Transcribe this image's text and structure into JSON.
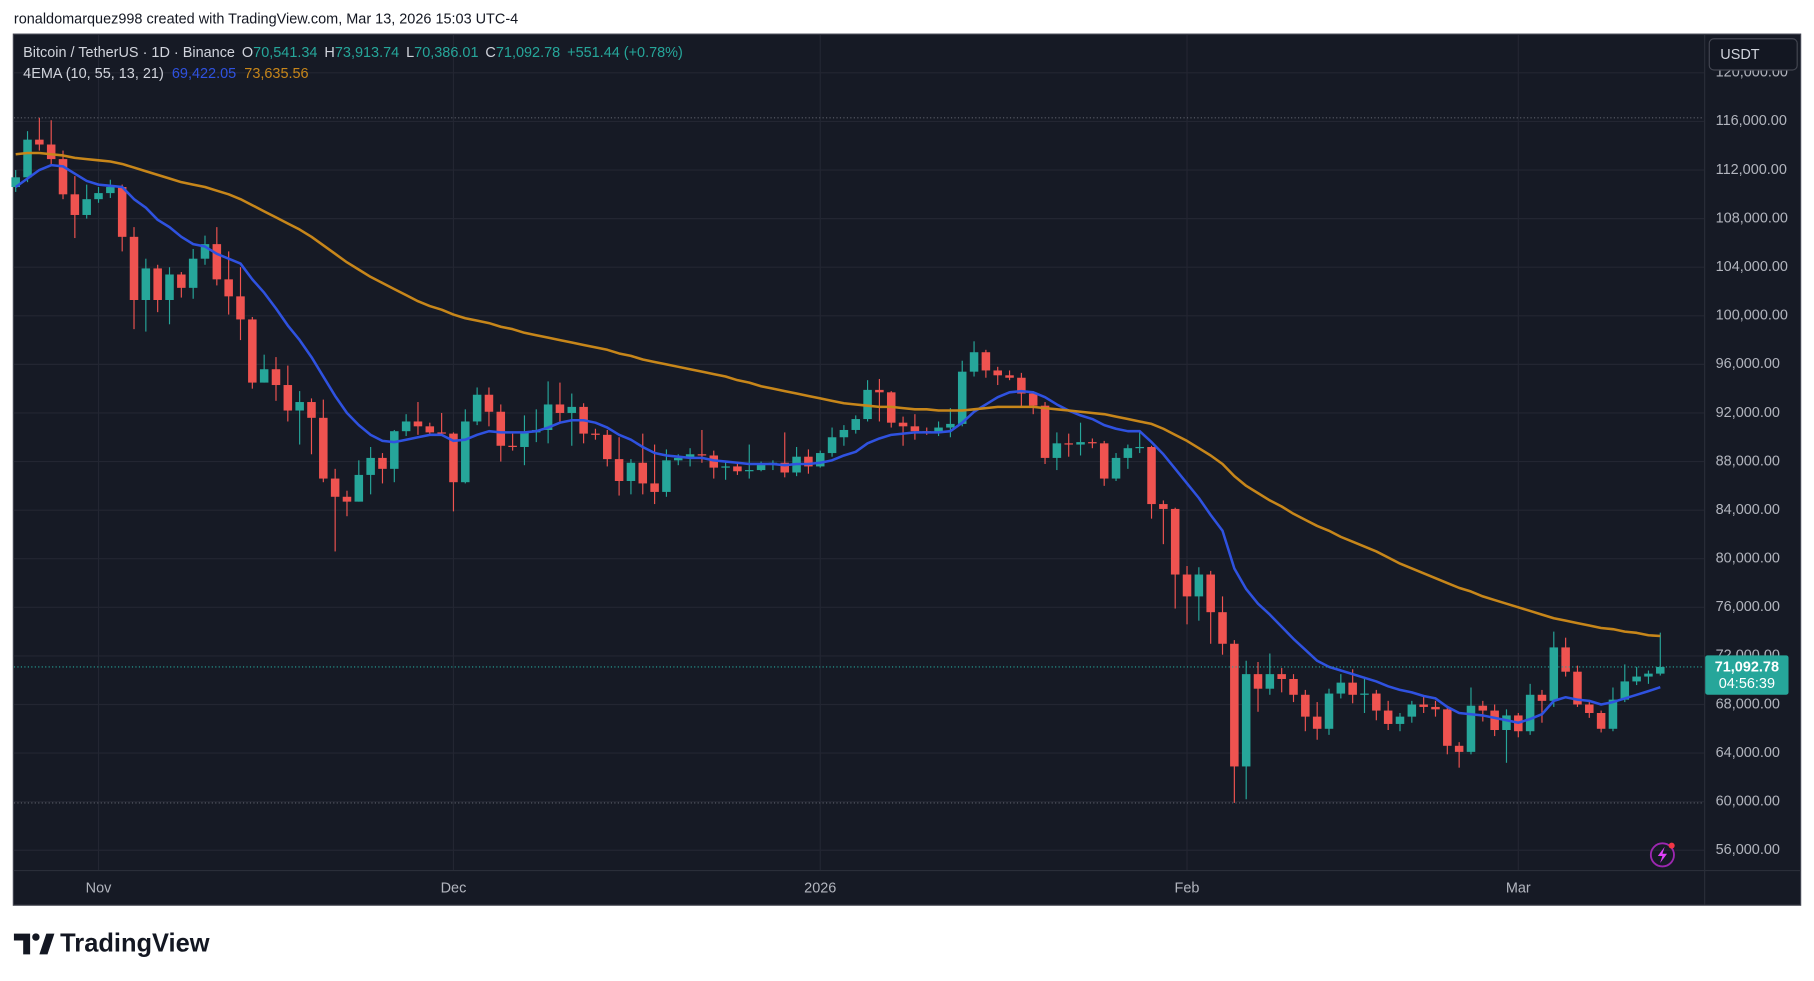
{
  "attribution": "ronaldomarquez998 created with TradingView.com, Mar 13, 2026 15:03 UTC-4",
  "brand": "TradingView",
  "currency_button": "USDT",
  "chart_data": {
    "type": "candlestick",
    "up_color": "#26a69a",
    "down_color": "#ef5350",
    "legend": {
      "symbol": "Bitcoin / TetherUS · 1D · Binance",
      "ohlc": [
        {
          "key": "O",
          "value": "70,541.34"
        },
        {
          "key": "H",
          "value": "73,913.74"
        },
        {
          "key": "L",
          "value": "70,386.01"
        },
        {
          "key": "C",
          "value": "71,092.78"
        }
      ],
      "change": "+551.44 (+0.78%)"
    },
    "last_price_label": "71,092.78",
    "countdown": "04:56:39",
    "xlim": [
      -0.15,
      142.7
    ],
    "xticks": [
      {
        "value": 7,
        "label": "Nov"
      },
      {
        "value": 37,
        "label": "Dec"
      },
      {
        "value": 68,
        "label": "2026"
      },
      {
        "value": 99,
        "label": "Feb"
      },
      {
        "value": 127,
        "label": "Mar"
      }
    ],
    "ylim": [
      54380,
      123140
    ],
    "yticks": [
      {
        "value": 56000,
        "label": "56,000.00"
      },
      {
        "value": 60000,
        "label": "60,000.00"
      },
      {
        "value": 64000,
        "label": "64,000.00"
      },
      {
        "value": 68000,
        "label": "68,000.00"
      },
      {
        "value": 72000,
        "label": "72,000.00"
      },
      {
        "value": 76000,
        "label": "76,000.00"
      },
      {
        "value": 80000,
        "label": "80,000.00"
      },
      {
        "value": 84000,
        "label": "84,000.00"
      },
      {
        "value": 88000,
        "label": "88,000.00"
      },
      {
        "value": 92000,
        "label": "92,000.00"
      },
      {
        "value": 96000,
        "label": "96,000.00"
      },
      {
        "value": 100000,
        "label": "100,000.00"
      },
      {
        "value": 104000,
        "label": "104,000.00"
      },
      {
        "value": 108000,
        "label": "108,000.00"
      },
      {
        "value": 112000,
        "label": "112,000.00"
      },
      {
        "value": 116000,
        "label": "116,000.00"
      },
      {
        "value": 120000,
        "label": "120,000.00"
      }
    ],
    "grid": true,
    "open": [
      110600,
      111400,
      114500,
      114100,
      112900,
      110000,
      108300,
      109600,
      110100,
      110600,
      106500,
      101300,
      103900,
      101300,
      103400,
      102300,
      104700,
      105900,
      103000,
      101600,
      99700,
      94500,
      95600,
      94300,
      92200,
      92900,
      91600,
      86600,
      85100,
      84700,
      86900,
      88300,
      87400,
      90500,
      91300,
      90900,
      90400,
      90300,
      86300,
      91300,
      93500,
      92100,
      89300,
      89200,
      90400,
      90600,
      92700,
      92000,
      92500,
      90300,
      90200,
      88200,
      86400,
      87900,
      86200,
      85500,
      88100,
      88300,
      88600,
      88500,
      87500,
      87600,
      87200,
      87300,
      87800,
      87900,
      87100,
      88400,
      87600,
      88700,
      90000,
      90600,
      91500,
      93900,
      93700,
      91200,
      90900,
      90500,
      90400,
      90800,
      91100,
      95400,
      97000,
      95500,
      95100,
      94900,
      93600,
      92600,
      88300,
      89500,
      89400,
      89600,
      89500,
      86600,
      88300,
      89100,
      89200,
      84500,
      84100,
      78700,
      76900,
      78700,
      75600,
      73000,
      62900,
      70500,
      69300,
      70500,
      70100,
      68800,
      67000,
      66000,
      68900,
      69800,
      68800,
      68900,
      67500,
      66400,
      67000,
      68000,
      67800,
      67600,
      64600,
      64100,
      67900,
      67500,
      65900,
      67100,
      65800,
      68800,
      68300,
      72700,
      70700,
      68000,
      67300,
      66000,
      68400,
      69900,
      70300,
      70541.34
    ],
    "high": [
      112000,
      115200,
      116300,
      116100,
      113600,
      111500,
      110800,
      110600,
      111200,
      110800,
      107300,
      104700,
      104200,
      104000,
      103600,
      105500,
      106600,
      107300,
      105300,
      104000,
      99900,
      96800,
      96600,
      95900,
      93800,
      93200,
      93100,
      87400,
      85600,
      88100,
      89200,
      88700,
      90600,
      91900,
      92900,
      91200,
      92000,
      90400,
      92300,
      94100,
      94100,
      92700,
      90300,
      91800,
      92300,
      94600,
      94500,
      93600,
      92800,
      90700,
      90600,
      90000,
      88200,
      90300,
      89400,
      89000,
      88600,
      89100,
      90600,
      88900,
      88000,
      88000,
      89400,
      88000,
      88100,
      90400,
      89200,
      89000,
      88900,
      90800,
      91000,
      91800,
      94700,
      94800,
      93800,
      91700,
      91900,
      90800,
      91300,
      92400,
      96300,
      97900,
      97200,
      95800,
      95500,
      95300,
      93800,
      92900,
      90400,
      90300,
      91200,
      89900,
      89700,
      88700,
      89400,
      90600,
      89300,
      84800,
      84200,
      79400,
      79300,
      79000,
      76900,
      73300,
      71600,
      71500,
      72200,
      71000,
      70500,
      69200,
      68200,
      69300,
      70500,
      70900,
      70300,
      69200,
      68300,
      67300,
      68300,
      68700,
      68300,
      67900,
      64900,
      69400,
      68300,
      68000,
      67600,
      67300,
      69700,
      69200,
      74000,
      73500,
      71200,
      68300,
      67500,
      69400,
      71300,
      71100,
      70800,
      73913.74
    ],
    "low": [
      110200,
      111000,
      113600,
      112400,
      109600,
      106400,
      108000,
      109300,
      109700,
      105300,
      98900,
      98700,
      100300,
      99300,
      101500,
      101400,
      104200,
      102500,
      100100,
      98000,
      94000,
      94500,
      93000,
      91300,
      89400,
      88600,
      86300,
      80600,
      83500,
      84700,
      85300,
      86200,
      86300,
      90100,
      90200,
      90200,
      90300,
      83900,
      86200,
      91000,
      90900,
      88000,
      88900,
      87700,
      89600,
      89500,
      91200,
      89300,
      89500,
      89800,
      87600,
      85200,
      85300,
      85300,
      84500,
      85100,
      87700,
      87600,
      87900,
      86600,
      86500,
      86900,
      86600,
      87200,
      87300,
      86700,
      86800,
      87000,
      87500,
      88400,
      89300,
      90300,
      91300,
      91300,
      90800,
      89300,
      89800,
      90200,
      90100,
      90000,
      90900,
      95000,
      94900,
      94300,
      94700,
      92500,
      91900,
      87800,
      87300,
      88400,
      88500,
      89100,
      86000,
      86400,
      87400,
      88700,
      83300,
      81200,
      75900,
      74600,
      74900,
      73000,
      72100,
      59900,
      60200,
      67400,
      68800,
      69000,
      68200,
      65800,
      65100,
      65500,
      68500,
      68100,
      67300,
      66700,
      65900,
      65800,
      66500,
      67300,
      67000,
      63900,
      62800,
      63900,
      66600,
      65400,
      63200,
      65300,
      65500,
      66500,
      67800,
      70300,
      67800,
      66900,
      65700,
      65800,
      68200,
      69600,
      69700,
      70386.01
    ],
    "close": [
      111400,
      114500,
      114100,
      112900,
      110000,
      108300,
      109600,
      110100,
      110600,
      106500,
      101300,
      103900,
      101300,
      103400,
      102300,
      104700,
      105900,
      103000,
      101600,
      99700,
      94500,
      95600,
      94300,
      92200,
      92900,
      91600,
      86600,
      85100,
      84700,
      86900,
      88300,
      87400,
      90500,
      91300,
      90900,
      90400,
      90300,
      86300,
      91300,
      93500,
      92100,
      89300,
      89200,
      90400,
      90600,
      92700,
      92000,
      92500,
      90300,
      90200,
      88200,
      86400,
      87900,
      86200,
      85500,
      88100,
      88300,
      88600,
      88500,
      87500,
      87600,
      87200,
      87300,
      87800,
      87900,
      87100,
      88400,
      87600,
      88700,
      90000,
      90600,
      91500,
      93900,
      93700,
      91200,
      90900,
      90500,
      90400,
      90800,
      91100,
      95400,
      97000,
      95500,
      95100,
      94900,
      93600,
      92600,
      88300,
      89500,
      89400,
      89600,
      89500,
      86600,
      88300,
      89100,
      89200,
      84500,
      84100,
      78700,
      76900,
      78700,
      75600,
      73000,
      62900,
      70500,
      69300,
      70500,
      70100,
      68800,
      67000,
      66000,
      68900,
      69800,
      68800,
      68900,
      67500,
      66400,
      67000,
      68000,
      67800,
      67600,
      64600,
      64100,
      67900,
      67500,
      65900,
      67100,
      65800,
      68800,
      68300,
      72700,
      70700,
      68000,
      67300,
      66000,
      68400,
      69900,
      70300,
      70541.34,
      71092.78
    ],
    "ema": {
      "label": "4EMA (10, 55, 13, 21)",
      "lines": [
        {
          "color": "#2f52e0",
          "value_label": "69,422.05",
          "values": [
            110600,
            111300,
            112000,
            112400,
            112300,
            111700,
            111100,
            110800,
            110700,
            110600,
            109600,
            108900,
            107900,
            107300,
            106500,
            105900,
            105700,
            105100,
            104700,
            104300,
            103000,
            101900,
            100600,
            99200,
            98000,
            96600,
            95000,
            93400,
            92000,
            91000,
            90200,
            89700,
            89600,
            89800,
            90000,
            90200,
            90200,
            89700,
            89800,
            90200,
            90500,
            90400,
            90400,
            90400,
            90500,
            90800,
            91200,
            91400,
            91400,
            91200,
            90800,
            90200,
            89800,
            89200,
            88700,
            88500,
            88400,
            88300,
            88300,
            88100,
            88000,
            87900,
            87800,
            87800,
            87800,
            87700,
            87800,
            87800,
            87900,
            88100,
            88500,
            88800,
            89500,
            89900,
            90200,
            90300,
            90400,
            90400,
            90400,
            90500,
            91200,
            92100,
            92700,
            93300,
            93700,
            93800,
            93700,
            93300,
            92700,
            92200,
            91800,
            91500,
            91000,
            90700,
            90500,
            90500,
            89600,
            88600,
            87400,
            86200,
            85000,
            83600,
            82300,
            79200,
            77500,
            76300,
            75400,
            74400,
            73400,
            72500,
            71600,
            71100,
            70800,
            70500,
            70200,
            69900,
            69500,
            69200,
            69000,
            68700,
            68500,
            67800,
            67300,
            67200,
            67100,
            66900,
            66700,
            66500,
            66800,
            67200,
            68300,
            68600,
            68400,
            68300,
            68000,
            68200,
            68500,
            68800,
            69100,
            69422.05
          ]
        },
        {
          "color": "#c7861a",
          "value_label": "73,635.56",
          "values": [
            113300,
            113400,
            113400,
            113300,
            113200,
            113000,
            112900,
            112800,
            112700,
            112500,
            112200,
            111900,
            111600,
            111300,
            111000,
            110800,
            110600,
            110300,
            110000,
            109600,
            109100,
            108600,
            108100,
            107600,
            107100,
            106500,
            105800,
            105100,
            104400,
            103800,
            103200,
            102700,
            102200,
            101700,
            101200,
            100800,
            100500,
            100100,
            99800,
            99600,
            99400,
            99100,
            98900,
            98600,
            98400,
            98200,
            98000,
            97800,
            97600,
            97400,
            97200,
            96900,
            96700,
            96400,
            96200,
            96000,
            95800,
            95600,
            95400,
            95200,
            95000,
            94700,
            94500,
            94200,
            94000,
            93800,
            93600,
            93400,
            93200,
            93000,
            92800,
            92700,
            92600,
            92500,
            92500,
            92400,
            92300,
            92300,
            92200,
            92200,
            92200,
            92300,
            92400,
            92500,
            92500,
            92500,
            92500,
            92400,
            92300,
            92200,
            92100,
            92000,
            91900,
            91700,
            91500,
            91300,
            91100,
            90700,
            90200,
            89700,
            89100,
            88500,
            87800,
            86800,
            86000,
            85400,
            84800,
            84300,
            83700,
            83200,
            82700,
            82300,
            81800,
            81400,
            81000,
            80600,
            80100,
            79600,
            79200,
            78800,
            78400,
            78000,
            77600,
            77300,
            76900,
            76600,
            76300,
            76000,
            75700,
            75400,
            75100,
            74900,
            74700,
            74500,
            74300,
            74200,
            74000,
            73900,
            73700,
            73635.56
          ]
        }
      ]
    }
  }
}
